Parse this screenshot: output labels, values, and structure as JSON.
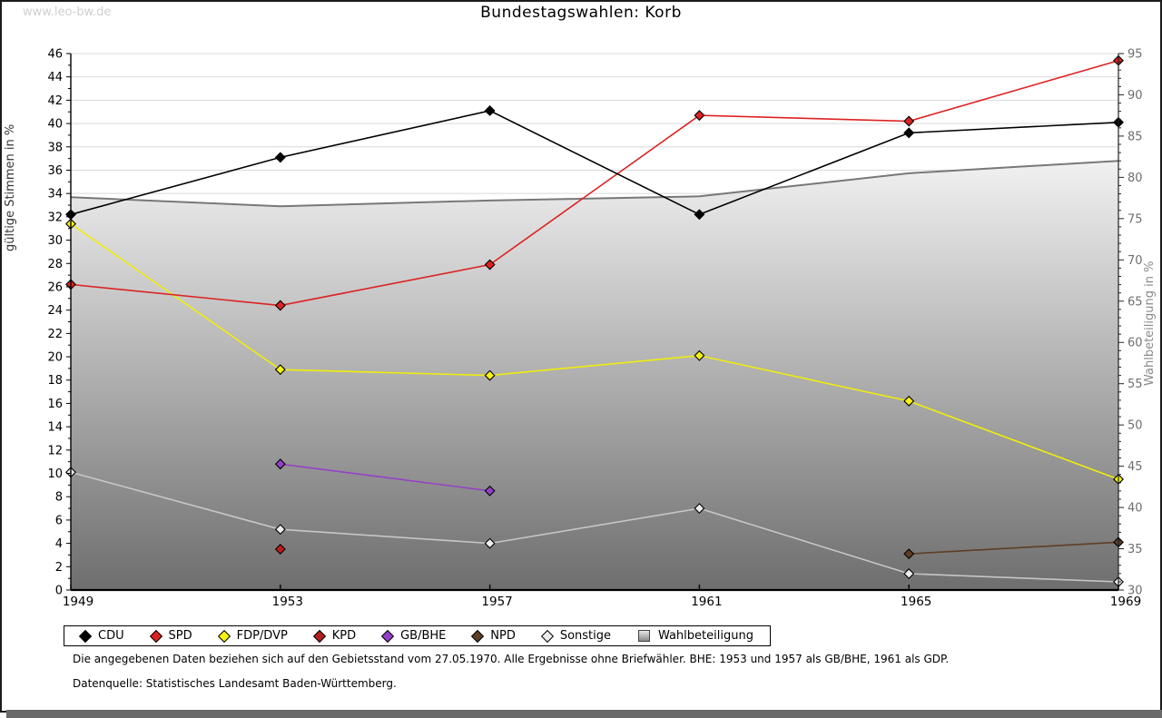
{
  "page": {
    "watermark": "www.leo-bw.de",
    "title": "Bundestagswahlen: Korb"
  },
  "chart_data": {
    "type": "line",
    "title": "Bundestagswahlen: Korb",
    "x_years": [
      "1949",
      "1953",
      "1957",
      "1961",
      "1965",
      "1969"
    ],
    "left_axis": {
      "label": "gültige Stimmen in %",
      "min": 0,
      "max": 46,
      "tick_step": 2
    },
    "right_axis": {
      "label": "Wahlbeteiligung in %",
      "min": 30,
      "max": 95,
      "tick_step": 5
    },
    "grid": true,
    "legend_position": "bottom",
    "series": [
      {
        "name": "Wahlbeteiligung",
        "axis": "right",
        "kind": "area",
        "color": "#787878",
        "values": [
          77.6,
          76.5,
          77.2,
          77.7,
          80.5,
          82.0
        ]
      },
      {
        "name": "Sonstige",
        "axis": "left",
        "kind": "line",
        "color": "#c6c6c6",
        "marker_fill": "#ececec",
        "values": [
          10.1,
          5.2,
          4.0,
          7.0,
          1.4,
          0.7
        ]
      },
      {
        "name": "NPD",
        "axis": "left",
        "kind": "line",
        "color": "#5f3d26",
        "marker_fill": "#5f3d26",
        "values": [
          null,
          null,
          null,
          null,
          3.1,
          4.1
        ]
      },
      {
        "name": "GB/BHE",
        "axis": "left",
        "kind": "line",
        "color": "#9440c8",
        "marker_fill": "#9440c8",
        "values": [
          null,
          10.8,
          8.5,
          null,
          null,
          null
        ]
      },
      {
        "name": "KPD",
        "axis": "left",
        "kind": "line",
        "color": "#b41f1f",
        "marker_fill": "#c41a1a",
        "values": [
          null,
          3.5,
          null,
          null,
          null,
          null
        ]
      },
      {
        "name": "FDP/DVP",
        "axis": "left",
        "kind": "line",
        "color": "#f0ed0c",
        "marker_fill": "#f6f312",
        "values": [
          31.4,
          18.9,
          18.4,
          20.1,
          16.2,
          9.5
        ]
      },
      {
        "name": "SPD",
        "axis": "left",
        "kind": "line",
        "color": "#dd2222",
        "marker_fill": "#dd2222",
        "values": [
          26.2,
          24.4,
          27.9,
          40.7,
          40.2,
          45.4
        ]
      },
      {
        "name": "CDU",
        "axis": "left",
        "kind": "line",
        "color": "#000000",
        "marker_fill": "#000000",
        "values": [
          32.2,
          37.1,
          41.1,
          32.2,
          39.2,
          40.1
        ]
      }
    ]
  },
  "legend": {
    "items": [
      {
        "label": "CDU",
        "marker": "diamond",
        "color": "#000000"
      },
      {
        "label": "SPD",
        "marker": "diamond",
        "color": "#dd2222"
      },
      {
        "label": "FDP/DVP",
        "marker": "diamond",
        "color": "#f6f312"
      },
      {
        "label": "KPD",
        "marker": "diamond",
        "color": "#b41f1f"
      },
      {
        "label": "GB/BHE",
        "marker": "diamond",
        "color": "#9440c8"
      },
      {
        "label": "NPD",
        "marker": "diamond",
        "color": "#5f3d26"
      },
      {
        "label": "Sonstige",
        "marker": "diamond",
        "color": "#ececec"
      },
      {
        "label": "Wahlbeteiligung",
        "marker": "square",
        "color": "#a8a8a8"
      }
    ]
  },
  "footnotes": {
    "line1": "Die angegebenen Daten beziehen sich auf den Gebietsstand vom 27.05.1970. Alle Ergebnisse ohne Briefwähler. BHE: 1953 und 1957 als GB/BHE, 1961 als GDP.",
    "line2": "Datenquelle: Statistisches Landesamt Baden-Württemberg."
  }
}
